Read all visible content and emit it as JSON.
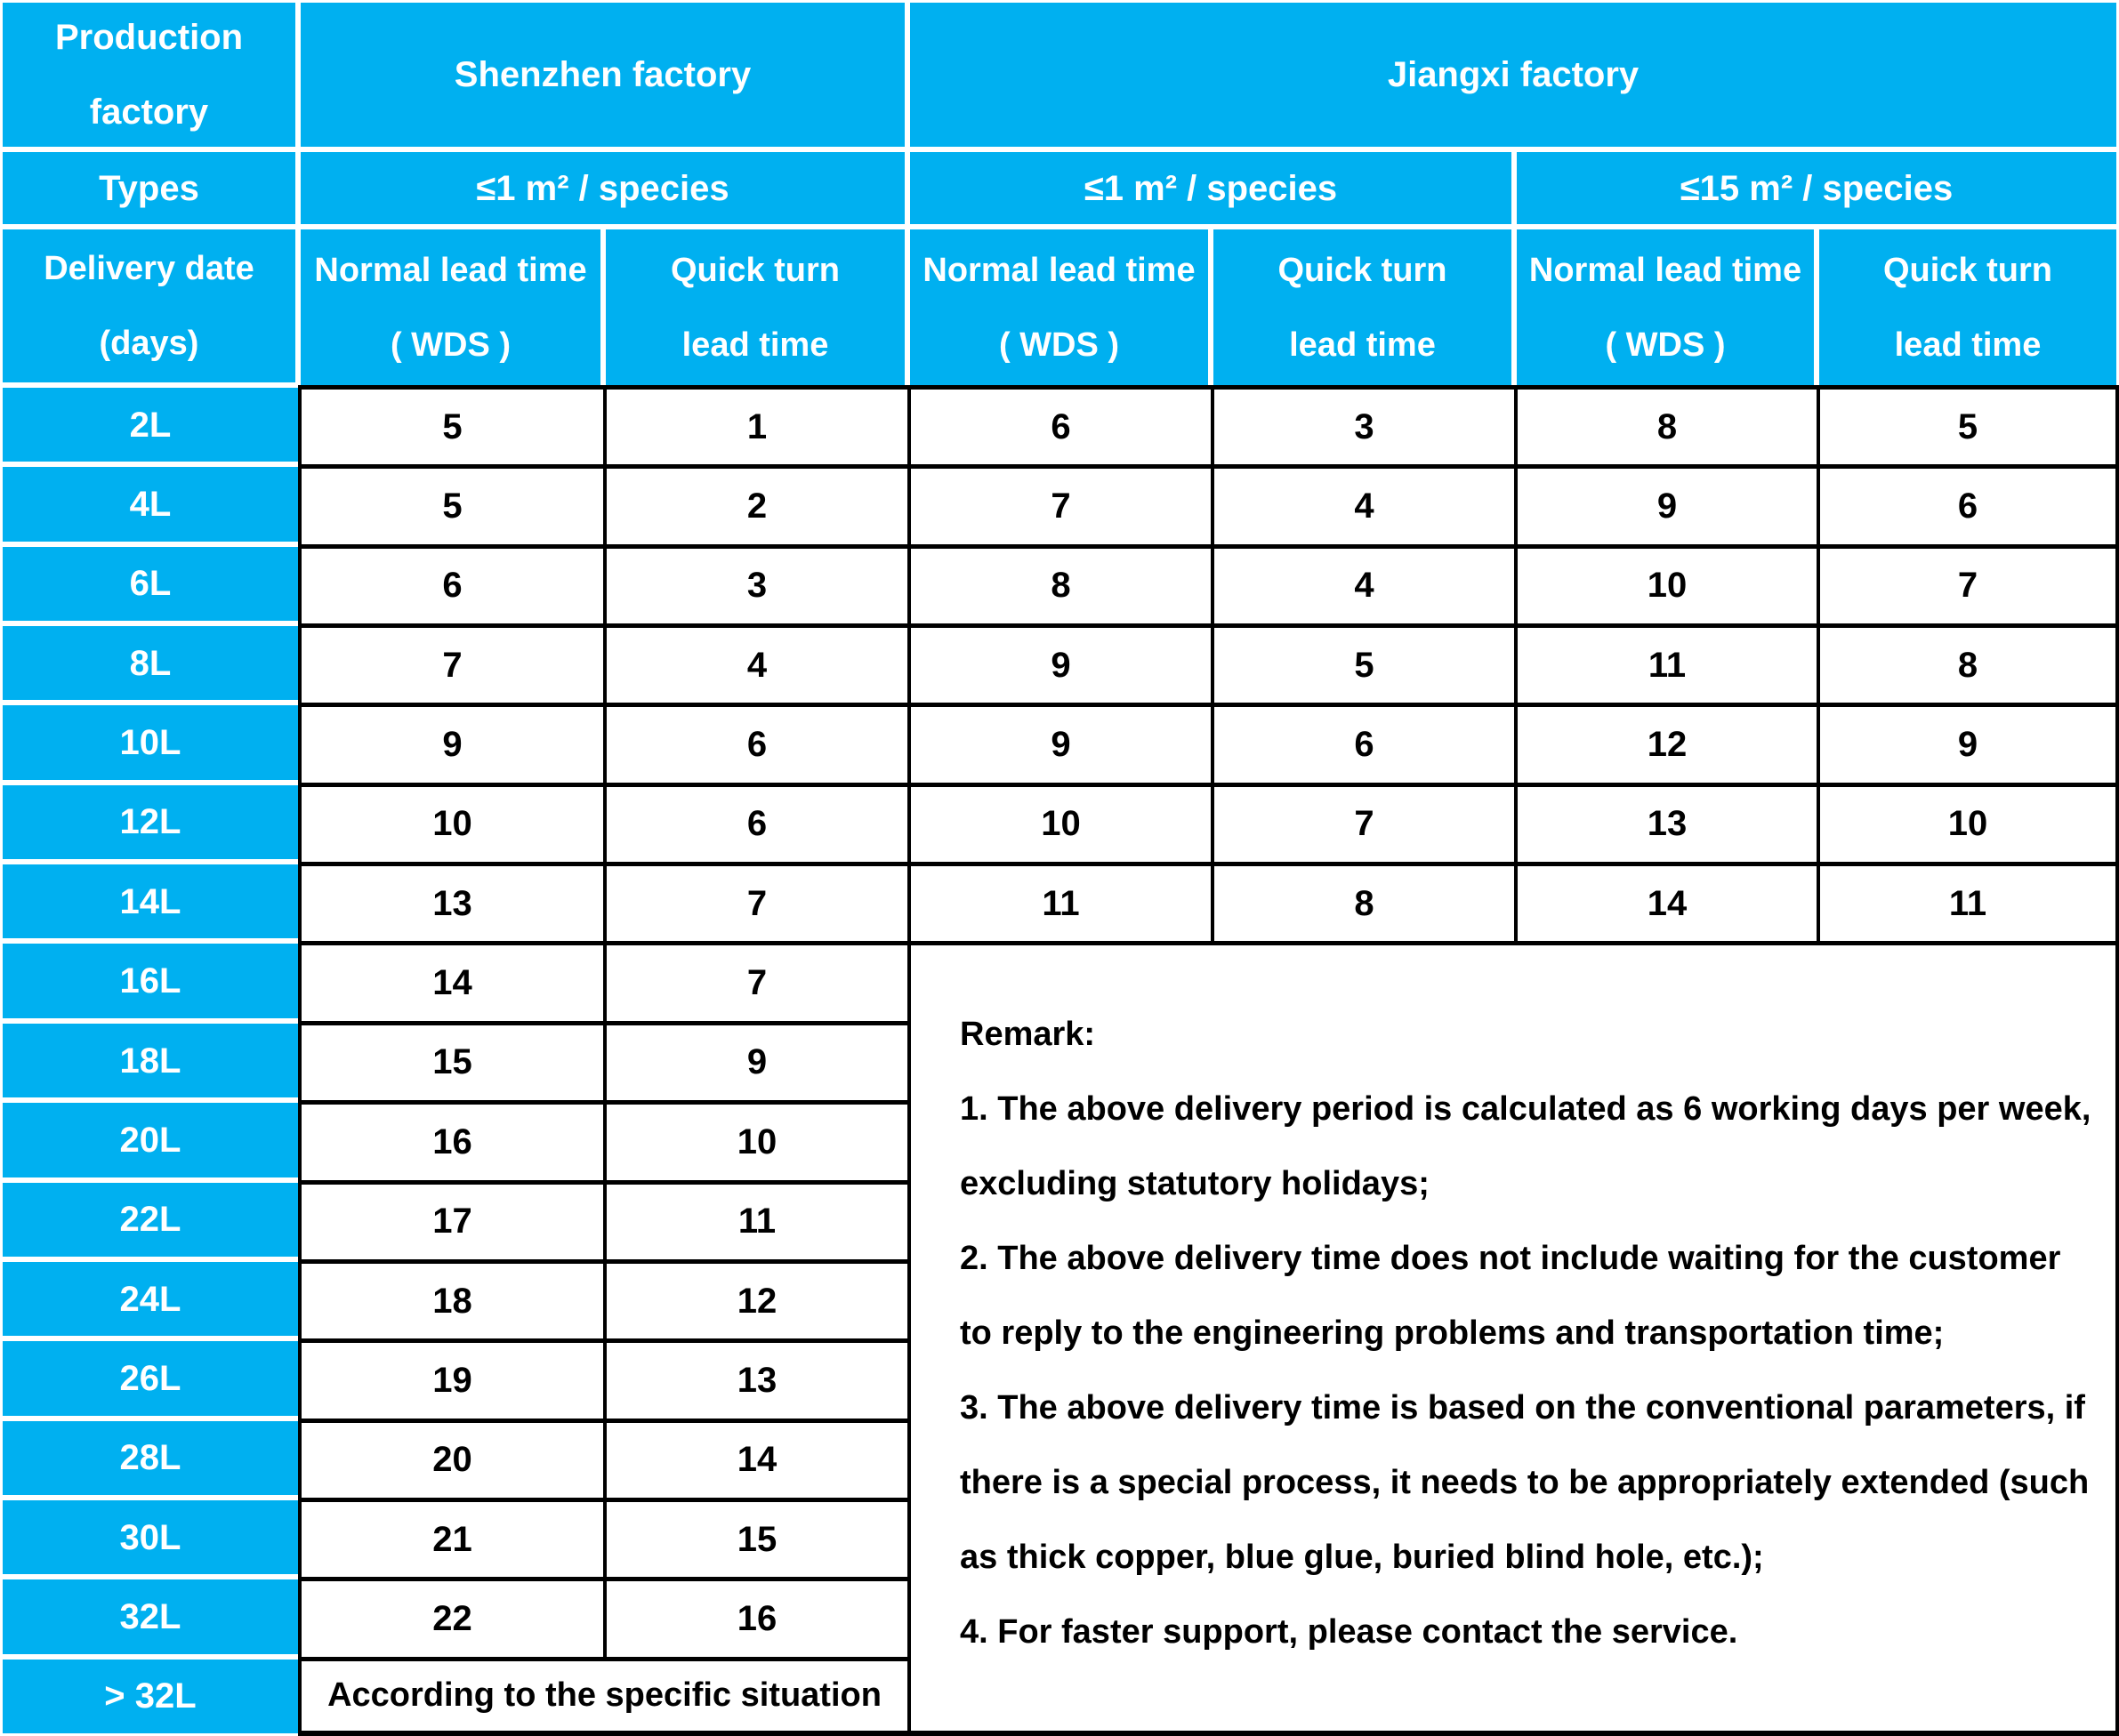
{
  "colors": {
    "accent": "#00B0F0",
    "header_text": "#FFFFFF",
    "data_text": "#000000",
    "grid_white": "#FFFFFF",
    "grid_black": "#000000"
  },
  "table": {
    "corner": {
      "line1": "Production",
      "line2": "factory"
    },
    "factories": {
      "shenzhen": "Shenzhen factory",
      "jiangxi": "Jiangxi factory"
    },
    "types_label": "Types",
    "type_groups": {
      "shenzhen": "≤1 m² / species",
      "jiangxi_small": "≤1 m² / species",
      "jiangxi_large": "≤15 m² / species"
    },
    "delivery_header": {
      "line1": "Delivery date",
      "line2": "(days)"
    },
    "col_headers": {
      "normal": {
        "line1": "Normal lead time",
        "line2": "( WDS )"
      },
      "quick": {
        "line1": "Quick turn",
        "line2": "lead time"
      }
    },
    "rows": [
      {
        "label": "2L",
        "cells": [
          "5",
          "1",
          "6",
          "3",
          "8",
          "5"
        ]
      },
      {
        "label": "4L",
        "cells": [
          "5",
          "2",
          "7",
          "4",
          "9",
          "6"
        ]
      },
      {
        "label": "6L",
        "cells": [
          "6",
          "3",
          "8",
          "4",
          "10",
          "7"
        ]
      },
      {
        "label": "8L",
        "cells": [
          "7",
          "4",
          "9",
          "5",
          "11",
          "8"
        ]
      },
      {
        "label": "10L",
        "cells": [
          "9",
          "6",
          "9",
          "6",
          "12",
          "9"
        ]
      },
      {
        "label": "12L",
        "cells": [
          "10",
          "6",
          "10",
          "7",
          "13",
          "10"
        ]
      },
      {
        "label": "14L",
        "cells": [
          "13",
          "7",
          "11",
          "8",
          "14",
          "11"
        ]
      },
      {
        "label": "16L",
        "cells": [
          "14",
          "7"
        ]
      },
      {
        "label": "18L",
        "cells": [
          "15",
          "9"
        ]
      },
      {
        "label": "20L",
        "cells": [
          "16",
          "10"
        ]
      },
      {
        "label": "22L",
        "cells": [
          "17",
          "11"
        ]
      },
      {
        "label": "24L",
        "cells": [
          "18",
          "12"
        ]
      },
      {
        "label": "26L",
        "cells": [
          "19",
          "13"
        ]
      },
      {
        "label": "28L",
        "cells": [
          "20",
          "14"
        ]
      },
      {
        "label": "30L",
        "cells": [
          "21",
          "15"
        ]
      },
      {
        "label": "32L",
        "cells": [
          "22",
          "16"
        ]
      },
      {
        "label": "> 32L",
        "cells": []
      }
    ],
    "over_note": "According to the specific situation",
    "remark": {
      "title": "Remark:",
      "items": [
        "1. The above delivery period is calculated as 6 working days per week, excluding statutory holidays;",
        "2. The above delivery time does not include waiting for the customer to reply to the engineering problems and transportation time;",
        "3. The above delivery time is based on the conventional parameters, if there is a special process, it needs to be appropriately extended (such as thick copper, blue glue, buried blind hole, etc.);",
        "4. For faster support, please contact the service."
      ]
    }
  }
}
